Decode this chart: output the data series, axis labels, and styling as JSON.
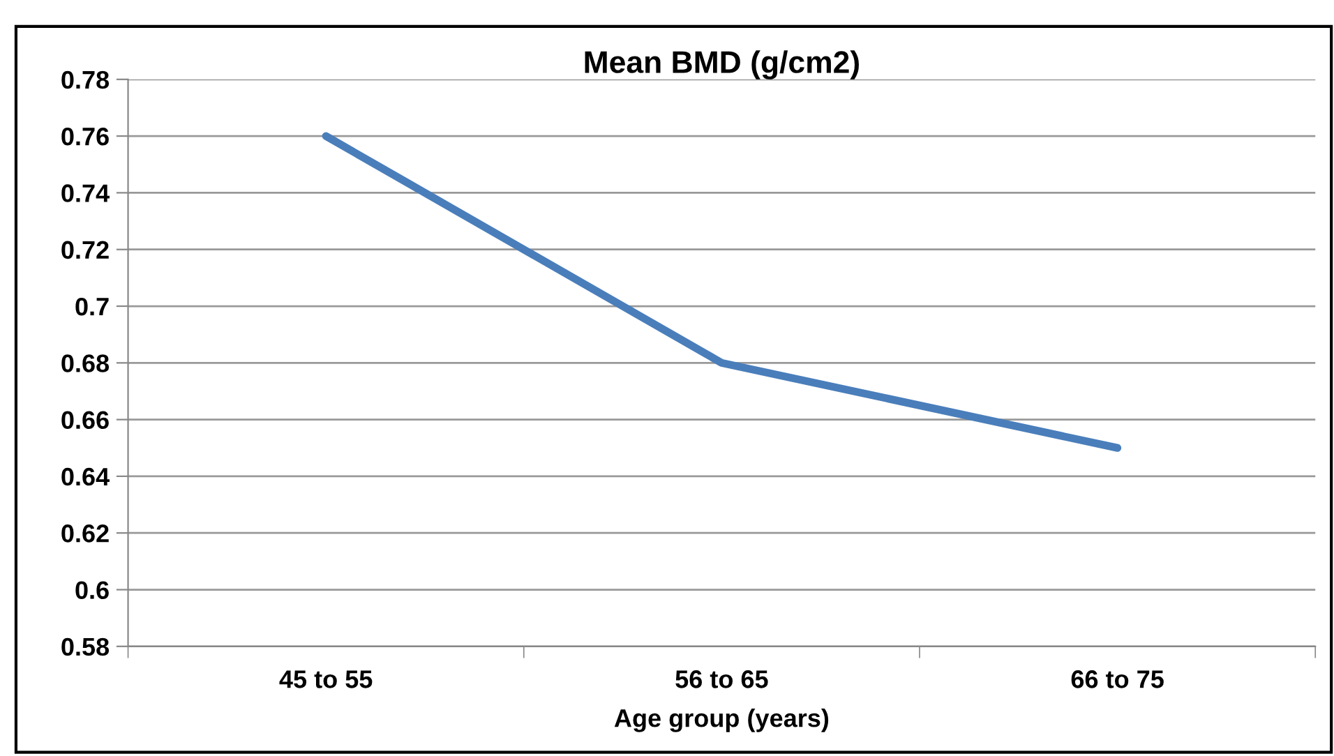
{
  "chart_data": {
    "type": "line",
    "title": "Mean BMD (g/cm2)",
    "xlabel": "Age group (years)",
    "categories": [
      "45 to 55",
      "56 to 65",
      "66 to 75"
    ],
    "series": [
      {
        "color": "#4a7ebb",
        "values": [
          0.76,
          0.68,
          0.65
        ]
      }
    ],
    "ylim": [
      0.58,
      0.78
    ],
    "yticks": [
      0.58,
      0.6,
      0.62,
      0.64,
      0.66,
      0.68,
      0.7,
      0.72,
      0.74,
      0.76,
      0.78
    ],
    "grid": "y",
    "legend": false,
    "marker": "none",
    "line_style": "solid"
  }
}
